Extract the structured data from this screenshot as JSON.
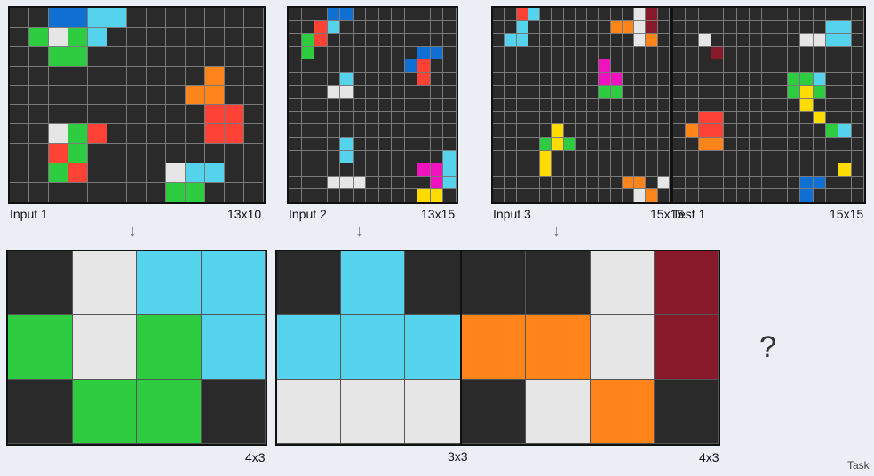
{
  "palette": {
    "0": "#2a2a2a",
    "1": "#0f6fd3",
    "2": "#ff4136",
    "3": "#2ecc40",
    "4": "#ffdc00",
    "5": "#aaaaaa",
    "6": "#f012be",
    "7": "#ff851b",
    "8": "#55d3ec",
    "9": "#87192b",
    "W": "#e6e6e6"
  },
  "examples": [
    {
      "input_label": "Input 1",
      "input_size": "13x10",
      "output_size": "4x3",
      "input": [
        "0011880000000",
        "03W3800000000",
        "0033000000000",
        "0000000000700",
        "0000000007700",
        "0000000000220",
        "00W3200000220",
        "0023000000000",
        "00320000W8800",
        "0000000033000"
      ],
      "output": [
        "0W88",
        "3W38",
        "0330"
      ]
    },
    {
      "input_label": "Input 2",
      "input_size": "13x15",
      "output_size": "3x3",
      "input": [
        "0001100000000",
        "0028000000000",
        "0320000000000",
        "0300000000110",
        "0000000001200",
        "0000800000200",
        "000WW00000000",
        "0000000000000",
        "0000000000000",
        "0000000000000",
        "0000800000000",
        "0000800000008",
        "0000000000668",
        "000WWW0000068",
        "0000000000440"
      ],
      "output": [
        "080",
        "888",
        "WWW"
      ]
    },
    {
      "input_label": "Input 3",
      "input_size": "15x15",
      "output_size": "4x3",
      "input": [
        "002800000000W90",
        "008000000077W90",
        "088000000000W70",
        "000000000000000",
        "000000000600000",
        "000000000660000",
        "000000000330000",
        "000000000000000",
        "000000000000000",
        "000004000000000",
        "000034300000000",
        "000040000000000",
        "000040000000000",
        "00000000000770W",
        "000000000000W70"
      ],
      "output": [
        "00W9",
        "77W9",
        "0W70"
      ]
    }
  ],
  "test": {
    "label": "Test 1",
    "size": "15x15",
    "input": [
      "000000000000000",
      "000000000000880",
      "00W0000000WW880",
      "000900000000000",
      "000000000000000",
      "000000000338000",
      "000000000343000",
      "000000000040000",
      "002200000004000",
      "072200000000380",
      "007700000000000",
      "000000000000000",
      "000000000000040",
      "000000000011000",
      "000000000010000"
    ]
  },
  "question_mark": "?",
  "arrow_glyph": "↓",
  "corner_label": "Task"
}
